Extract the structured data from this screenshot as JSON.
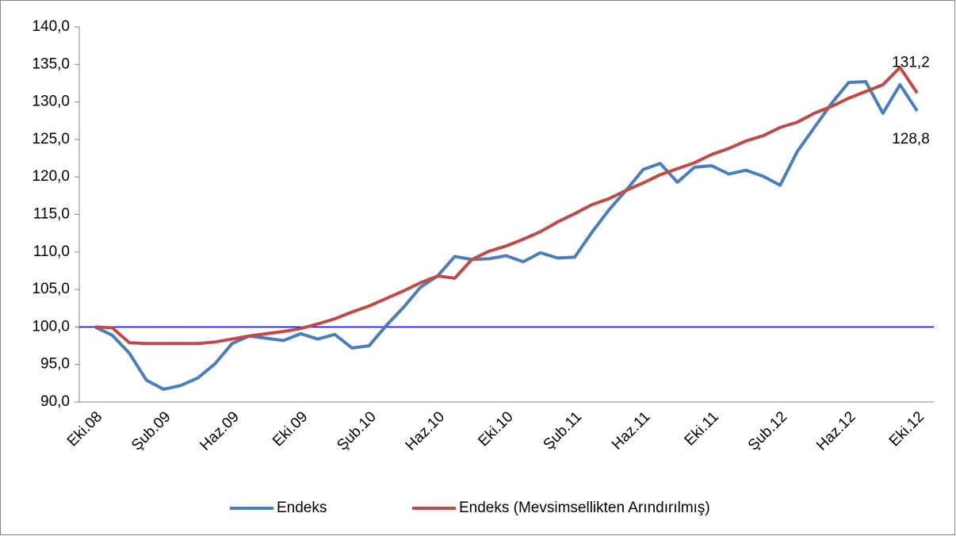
{
  "chart_data": {
    "type": "line",
    "categories": [
      "Eki.08",
      null,
      null,
      null,
      "Şub.09",
      null,
      null,
      null,
      "Haz.09",
      null,
      null,
      null,
      "Eki.09",
      null,
      null,
      null,
      "Şub.10",
      null,
      null,
      null,
      "Haz.10",
      null,
      null,
      null,
      "Eki.10",
      null,
      null,
      null,
      "Şub.11",
      null,
      null,
      null,
      "Haz.11",
      null,
      null,
      null,
      "Eki.11",
      null,
      null,
      null,
      "Şub.12",
      null,
      null,
      null,
      "Haz.12",
      null,
      null,
      null,
      "Eki.12"
    ],
    "series": [
      {
        "name": "Endeks",
        "color": "#4a7ebb",
        "values": [
          100.0,
          98.9,
          96.5,
          92.9,
          91.7,
          92.2,
          93.2,
          95.1,
          97.8,
          98.8,
          98.5,
          98.2,
          99.1,
          98.4,
          99.0,
          97.2,
          97.5,
          100.2,
          102.6,
          105.3,
          106.8,
          109.4,
          109.0,
          109.1,
          109.5,
          108.7,
          109.9,
          109.2,
          109.3,
          112.6,
          115.6,
          118.2,
          121.0,
          121.8,
          119.3,
          121.3,
          121.5,
          120.4,
          120.9,
          120.1,
          118.9,
          123.4,
          126.6,
          129.8,
          132.6,
          132.7,
          128.5,
          132.3,
          128.8
        ],
        "value_labels": [
          null,
          null,
          null,
          null,
          null,
          null,
          null,
          null,
          null,
          null,
          null,
          null,
          null,
          null,
          null,
          null,
          null,
          null,
          null,
          null,
          null,
          null,
          null,
          null,
          null,
          null,
          null,
          null,
          null,
          null,
          null,
          null,
          null,
          null,
          null,
          null,
          null,
          null,
          null,
          null,
          null,
          null,
          null,
          null,
          null,
          null,
          null,
          null,
          "128,8"
        ]
      },
      {
        "name": "Endeks (Mevsimsellikten Arındırılmış)",
        "color": "#be4b48",
        "values": [
          100.0,
          99.9,
          97.9,
          97.8,
          97.8,
          97.8,
          97.8,
          98.0,
          98.4,
          98.8,
          99.1,
          99.4,
          99.8,
          100.4,
          101.1,
          102.0,
          102.8,
          103.8,
          104.8,
          105.9,
          106.8,
          106.5,
          109.0,
          110.1,
          110.8,
          111.7,
          112.7,
          114.0,
          115.1,
          116.3,
          117.1,
          118.2,
          119.2,
          120.3,
          121.1,
          121.9,
          123.0,
          123.8,
          124.8,
          125.5,
          126.6,
          127.3,
          128.5,
          129.4,
          130.5,
          131.4,
          132.3,
          134.6,
          131.2
        ],
        "value_labels": [
          null,
          null,
          null,
          null,
          null,
          null,
          null,
          null,
          null,
          null,
          null,
          null,
          null,
          null,
          null,
          null,
          null,
          null,
          null,
          null,
          null,
          null,
          null,
          null,
          null,
          null,
          null,
          null,
          null,
          null,
          null,
          null,
          null,
          null,
          null,
          null,
          null,
          null,
          null,
          null,
          null,
          null,
          null,
          null,
          null,
          null,
          null,
          null,
          "131,2"
        ]
      }
    ],
    "reference_line": {
      "value": 100,
      "color": "#0000ff"
    },
    "ylim": [
      90,
      140
    ],
    "yticks": [
      {
        "value": 90,
        "label": "90,0"
      },
      {
        "value": 95,
        "label": "95,0"
      },
      {
        "value": 100,
        "label": "100,0"
      },
      {
        "value": 105,
        "label": "105,0"
      },
      {
        "value": 110,
        "label": "110,0"
      },
      {
        "value": 115,
        "label": "115,0"
      },
      {
        "value": 120,
        "label": "120,0"
      },
      {
        "value": 125,
        "label": "125,0"
      },
      {
        "value": 130,
        "label": "130,0"
      },
      {
        "value": 135,
        "label": "135,0"
      },
      {
        "value": 140,
        "label": "140,0"
      }
    ],
    "legend": "bottom"
  }
}
